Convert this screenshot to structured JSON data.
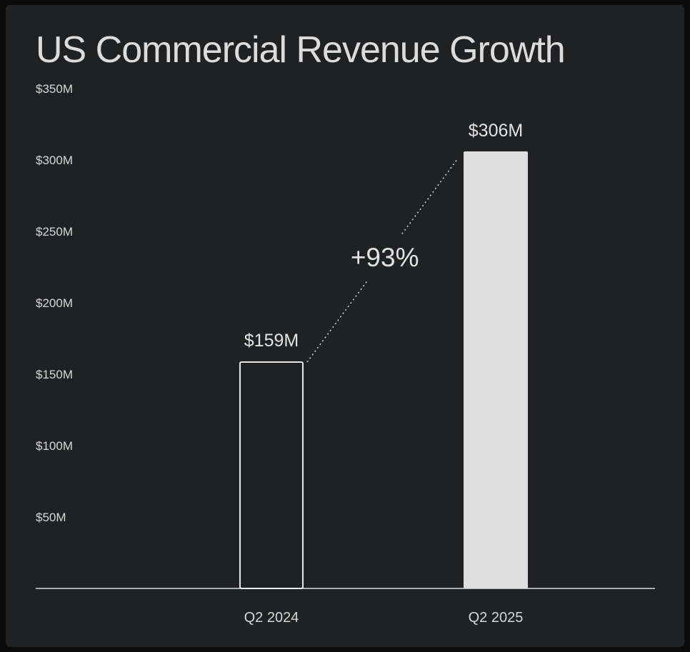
{
  "chart_data": {
    "type": "bar",
    "title": "US Commercial Revenue Growth",
    "categories": [
      "Q2 2024",
      "Q2 2025"
    ],
    "values": [
      159,
      306
    ],
    "value_labels": [
      "$159M",
      "$306M"
    ],
    "yticks": [
      50,
      100,
      150,
      200,
      250,
      300,
      350
    ],
    "ytick_labels": [
      "$50M",
      "$100M",
      "$150M",
      "$200M",
      "$250M",
      "$300M",
      "$350M"
    ],
    "ylim": [
      0,
      350
    ],
    "ylabel": "",
    "xlabel": "",
    "growth_annotation": "+93%",
    "grid": false,
    "bar_styles": [
      "outline",
      "filled"
    ],
    "colors": {
      "background": "#1f2123",
      "text": "#dcdcdc",
      "bar_fill": "#dedede",
      "bar_outline": "#e8e8e8",
      "axis": "#d8d8d8"
    }
  }
}
